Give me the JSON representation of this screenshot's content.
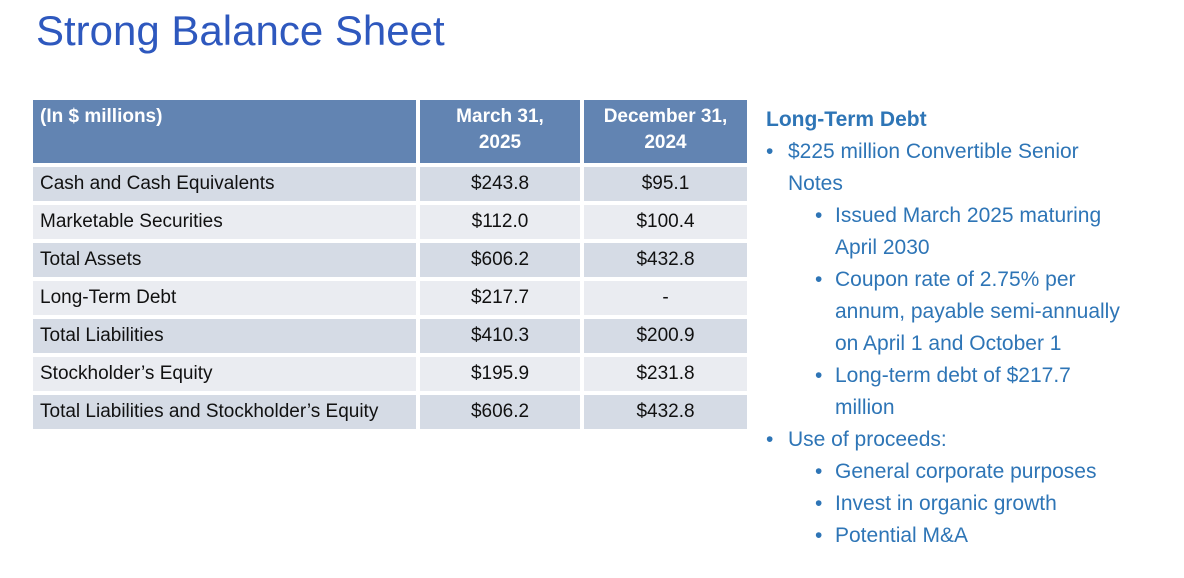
{
  "title": "Strong Balance Sheet",
  "table": {
    "headers": [
      "(In $ millions)",
      "March 31,\n2025",
      "December 31,\n2024"
    ],
    "rows": [
      [
        "Cash and Cash Equivalents",
        "$243.8",
        "$95.1"
      ],
      [
        "Marketable Securities",
        "$112.0",
        "$100.4"
      ],
      [
        "Total Assets",
        "$606.2",
        "$432.8"
      ],
      [
        "Long-Term Debt",
        "$217.7",
        "-"
      ],
      [
        "Total Liabilities",
        "$410.3",
        "$200.9"
      ],
      [
        "Stockholder’s Equity",
        "$195.9",
        "$231.8"
      ],
      [
        "Total Liabilities and Stockholder’s Equity",
        "$606.2",
        "$432.8"
      ]
    ]
  },
  "right_panel": {
    "heading": "Long-Term Debt",
    "bullet_char": "•",
    "bullets": [
      {
        "level": 1,
        "text": "$225 million Convertible Senior\nNotes"
      },
      {
        "level": 2,
        "text": "Issued March 2025 maturing\nApril 2030"
      },
      {
        "level": 2,
        "text": "Coupon rate of 2.75% per\nannum, payable semi-annually\non April 1 and October 1"
      },
      {
        "level": 2,
        "text": "Long-term debt of $217.7\nmillion"
      },
      {
        "level": 1,
        "text": "Use of proceeds:"
      },
      {
        "level": 2,
        "text": "General corporate purposes"
      },
      {
        "level": 2,
        "text": "Invest in organic growth"
      },
      {
        "level": 2,
        "text": "Potential M&A"
      }
    ]
  },
  "colors": {
    "title_blue": "#2E58BE",
    "table_header_fill": "#6284B2",
    "row_band_dark": "#D5DBE5",
    "row_band_light": "#EAECF1",
    "panel_text_blue": "#2E75B6"
  }
}
